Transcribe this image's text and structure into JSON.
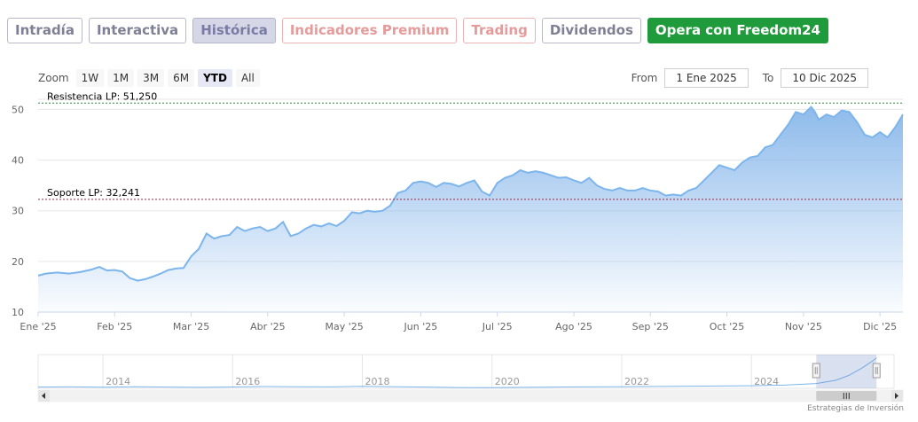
{
  "tabs": [
    {
      "label": "Intradía",
      "style": "ph"
    },
    {
      "label": "Interactiva",
      "style": "ph"
    },
    {
      "label": "Histórica",
      "style": "active"
    },
    {
      "label": "Indicadores Premium",
      "style": "red"
    },
    {
      "label": "Trading",
      "style": "red"
    },
    {
      "label": "Dividendos",
      "style": "ph"
    },
    {
      "label": "Opera con Freedom24",
      "style": "green"
    }
  ],
  "zoom": {
    "label": "Zoom",
    "buttons": [
      "1W",
      "1M",
      "3M",
      "6M",
      "YTD",
      "All"
    ],
    "selected": "YTD"
  },
  "range": {
    "from_label": "From",
    "from_value": "1 Ene 2025",
    "to_label": "To",
    "to_value": "10 Dic 2025"
  },
  "credit": "Estrategias de Inversión",
  "colors": {
    "line": "#7cb5ec",
    "fill_top": "#88b7ea",
    "resistance": "#2e8b3a",
    "support": "#a0283c"
  },
  "chart_data": {
    "type": "area",
    "grid": true,
    "ylim": [
      10,
      52
    ],
    "y_ticks": [
      10,
      20,
      30,
      40,
      50
    ],
    "x_ticks": [
      "Ene '25",
      "Feb '25",
      "Mar '25",
      "Abr '25",
      "May '25",
      "Jun '25",
      "Jul '25",
      "Ago '25",
      "Sep '25",
      "Oct '25",
      "Nov '25",
      "Dic '25"
    ],
    "x_month_index": [
      0,
      1,
      2,
      3,
      4,
      5,
      6,
      7,
      8,
      9,
      10,
      11
    ],
    "xlim_month_index": [
      0,
      11.3
    ],
    "series": [
      {
        "points": [
          [
            0.0,
            17.2
          ],
          [
            0.1,
            17.6
          ],
          [
            0.25,
            17.8
          ],
          [
            0.4,
            17.6
          ],
          [
            0.55,
            17.9
          ],
          [
            0.7,
            18.4
          ],
          [
            0.8,
            18.9
          ],
          [
            0.9,
            18.2
          ],
          [
            1.0,
            18.3
          ],
          [
            1.1,
            18.0
          ],
          [
            1.2,
            16.7
          ],
          [
            1.3,
            16.2
          ],
          [
            1.4,
            16.5
          ],
          [
            1.5,
            17.0
          ],
          [
            1.6,
            17.6
          ],
          [
            1.7,
            18.3
          ],
          [
            1.8,
            18.6
          ],
          [
            1.9,
            18.7
          ],
          [
            2.0,
            21.0
          ],
          [
            2.1,
            22.5
          ],
          [
            2.2,
            25.5
          ],
          [
            2.3,
            24.5
          ],
          [
            2.4,
            25.0
          ],
          [
            2.5,
            25.2
          ],
          [
            2.6,
            26.8
          ],
          [
            2.7,
            26.0
          ],
          [
            2.8,
            26.5
          ],
          [
            2.9,
            26.8
          ],
          [
            3.0,
            26.0
          ],
          [
            3.1,
            26.5
          ],
          [
            3.2,
            27.8
          ],
          [
            3.3,
            25.0
          ],
          [
            3.4,
            25.5
          ],
          [
            3.5,
            26.5
          ],
          [
            3.6,
            27.2
          ],
          [
            3.7,
            26.9
          ],
          [
            3.8,
            27.5
          ],
          [
            3.9,
            27.0
          ],
          [
            4.0,
            28.0
          ],
          [
            4.1,
            29.7
          ],
          [
            4.2,
            29.5
          ],
          [
            4.3,
            30.0
          ],
          [
            4.4,
            29.8
          ],
          [
            4.5,
            30.0
          ],
          [
            4.6,
            31.0
          ],
          [
            4.7,
            33.5
          ],
          [
            4.8,
            34.0
          ],
          [
            4.9,
            35.5
          ],
          [
            5.0,
            35.8
          ],
          [
            5.1,
            35.5
          ],
          [
            5.2,
            34.7
          ],
          [
            5.3,
            35.5
          ],
          [
            5.4,
            35.3
          ],
          [
            5.5,
            34.8
          ],
          [
            5.6,
            35.5
          ],
          [
            5.7,
            36.0
          ],
          [
            5.8,
            33.8
          ],
          [
            5.9,
            33.0
          ],
          [
            6.0,
            35.5
          ],
          [
            6.1,
            36.5
          ],
          [
            6.2,
            37.0
          ],
          [
            6.3,
            38.0
          ],
          [
            6.4,
            37.5
          ],
          [
            6.5,
            37.8
          ],
          [
            6.6,
            37.5
          ],
          [
            6.7,
            37.0
          ],
          [
            6.8,
            36.5
          ],
          [
            6.9,
            36.6
          ],
          [
            7.0,
            36.0
          ],
          [
            7.1,
            35.5
          ],
          [
            7.2,
            36.5
          ],
          [
            7.3,
            35.0
          ],
          [
            7.4,
            34.3
          ],
          [
            7.5,
            34.0
          ],
          [
            7.6,
            34.5
          ],
          [
            7.7,
            34.0
          ],
          [
            7.8,
            34.0
          ],
          [
            7.9,
            34.5
          ],
          [
            8.0,
            34.0
          ],
          [
            8.1,
            33.8
          ],
          [
            8.2,
            33.0
          ],
          [
            8.3,
            33.2
          ],
          [
            8.4,
            33.0
          ],
          [
            8.5,
            34.0
          ],
          [
            8.6,
            34.5
          ],
          [
            8.7,
            36.0
          ],
          [
            8.8,
            37.5
          ],
          [
            8.9,
            39.0
          ],
          [
            9.0,
            38.5
          ],
          [
            9.1,
            38.0
          ],
          [
            9.2,
            39.5
          ],
          [
            9.3,
            40.5
          ],
          [
            9.4,
            40.8
          ],
          [
            9.5,
            42.5
          ],
          [
            9.6,
            43.0
          ],
          [
            9.7,
            45.0
          ],
          [
            9.8,
            47.0
          ],
          [
            9.9,
            49.5
          ],
          [
            10.0,
            49.0
          ],
          [
            10.1,
            50.5
          ],
          [
            10.15,
            49.5
          ],
          [
            10.2,
            48.0
          ],
          [
            10.3,
            49.0
          ],
          [
            10.4,
            48.5
          ],
          [
            10.5,
            49.8
          ],
          [
            10.6,
            49.5
          ],
          [
            10.7,
            47.5
          ],
          [
            10.8,
            45.0
          ],
          [
            10.9,
            44.5
          ],
          [
            11.0,
            45.5
          ],
          [
            11.1,
            44.5
          ],
          [
            11.2,
            46.5
          ],
          [
            11.3,
            49.0
          ]
        ]
      }
    ],
    "annotations": [
      {
        "label": "Resistencia LP: 51,250",
        "value": 51.25,
        "kind": "resistance"
      },
      {
        "label": "Soporte LP: 32,241",
        "value": 32.241,
        "kind": "support"
      }
    ],
    "navigator": {
      "year_labels": [
        "2014",
        "2016",
        "2018",
        "2020",
        "2022",
        "2024"
      ],
      "year_positions": [
        0,
        2,
        4,
        6,
        8,
        10
      ],
      "xlim_years": [
        -1.0,
        12.2
      ],
      "selected_from_year": 11.0,
      "selected_to_year": 11.93,
      "ylim": [
        10,
        52
      ],
      "overview_points": [
        [
          -1.0,
          11.5
        ],
        [
          -0.5,
          11.8
        ],
        [
          0.0,
          11.3
        ],
        [
          0.5,
          12.0
        ],
        [
          1.0,
          11.6
        ],
        [
          1.5,
          11.2
        ],
        [
          2.0,
          11.7
        ],
        [
          2.5,
          12.2
        ],
        [
          3.0,
          12.0
        ],
        [
          3.5,
          11.8
        ],
        [
          4.0,
          12.5
        ],
        [
          4.5,
          12.0
        ],
        [
          5.0,
          11.5
        ],
        [
          5.5,
          11.0
        ],
        [
          6.0,
          10.8
        ],
        [
          6.5,
          11.2
        ],
        [
          7.0,
          11.5
        ],
        [
          7.5,
          11.8
        ],
        [
          8.0,
          12.0
        ],
        [
          8.5,
          12.3
        ],
        [
          9.0,
          12.7
        ],
        [
          9.5,
          12.9
        ],
        [
          10.0,
          13.2
        ],
        [
          10.5,
          14.0
        ],
        [
          11.0,
          16.0
        ],
        [
          11.3,
          20.0
        ],
        [
          11.5,
          26.0
        ],
        [
          11.7,
          35.0
        ],
        [
          11.85,
          43.0
        ],
        [
          11.93,
          48.0
        ]
      ]
    }
  }
}
